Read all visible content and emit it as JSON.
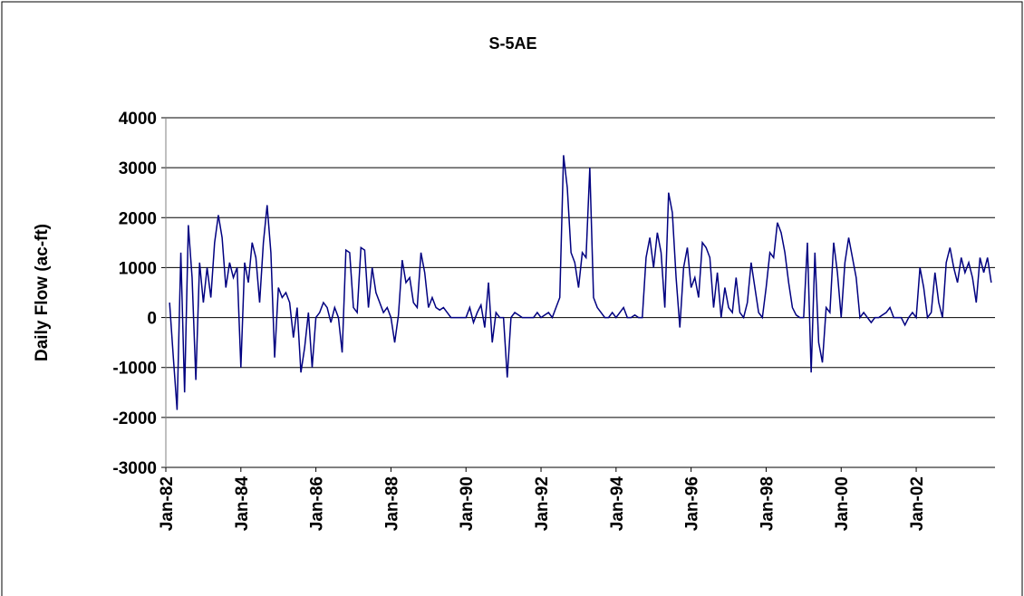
{
  "chart_data": {
    "type": "line",
    "title": "S-5AE",
    "y_label": "Daily Flow (ac-ft)",
    "color": "#000080",
    "grid": true,
    "xlim": [
      1982,
      2004.1
    ],
    "xticks": [
      {
        "value": 1982,
        "label": "Jan-82"
      },
      {
        "value": 1984,
        "label": "Jan-84"
      },
      {
        "value": 1986,
        "label": "Jan-86"
      },
      {
        "value": 1988,
        "label": "Jan-88"
      },
      {
        "value": 1990,
        "label": "Jan-90"
      },
      {
        "value": 1992,
        "label": "Jan-92"
      },
      {
        "value": 1994,
        "label": "Jan-94"
      },
      {
        "value": 1996,
        "label": "Jan-96"
      },
      {
        "value": 1998,
        "label": "Jan-98"
      },
      {
        "value": 2000,
        "label": "Jan-00"
      },
      {
        "value": 2002,
        "label": "Jan-02"
      }
    ],
    "ylim": [
      -3000,
      4000
    ],
    "yticks": [
      -3000,
      -2000,
      -1000,
      0,
      1000,
      2000,
      3000,
      4000
    ],
    "x": [
      1982.1,
      1982.2,
      1982.3,
      1982.4,
      1982.5,
      1982.6,
      1982.7,
      1982.8,
      1982.9,
      1983.0,
      1983.1,
      1983.2,
      1983.3,
      1983.4,
      1983.5,
      1983.6,
      1983.7,
      1983.8,
      1983.9,
      1984.0,
      1984.1,
      1984.2,
      1984.3,
      1984.4,
      1984.5,
      1984.6,
      1984.7,
      1984.8,
      1984.9,
      1985.0,
      1985.1,
      1985.2,
      1985.3,
      1985.4,
      1985.5,
      1985.6,
      1985.7,
      1985.8,
      1985.9,
      1986.0,
      1986.1,
      1986.2,
      1986.3,
      1986.4,
      1986.5,
      1986.6,
      1986.7,
      1986.8,
      1986.9,
      1987.0,
      1987.1,
      1987.2,
      1987.3,
      1987.4,
      1987.5,
      1987.6,
      1987.7,
      1987.8,
      1987.9,
      1988.0,
      1988.1,
      1988.2,
      1988.3,
      1988.4,
      1988.5,
      1988.6,
      1988.7,
      1988.8,
      1988.9,
      1989.0,
      1989.1,
      1989.2,
      1989.3,
      1989.4,
      1989.5,
      1989.6,
      1989.7,
      1989.8,
      1989.9,
      1990.0,
      1990.1,
      1990.2,
      1990.3,
      1990.4,
      1990.5,
      1990.6,
      1990.7,
      1990.8,
      1990.9,
      1991.0,
      1991.1,
      1991.2,
      1991.3,
      1991.4,
      1991.5,
      1991.6,
      1991.7,
      1991.8,
      1991.9,
      1992.0,
      1992.1,
      1992.2,
      1992.3,
      1992.4,
      1992.5,
      1992.6,
      1992.7,
      1992.8,
      1992.9,
      1993.0,
      1993.1,
      1993.2,
      1993.3,
      1993.4,
      1993.5,
      1993.6,
      1993.7,
      1993.8,
      1993.9,
      1994.0,
      1994.1,
      1994.2,
      1994.3,
      1994.4,
      1994.5,
      1994.6,
      1994.7,
      1994.8,
      1994.9,
      1995.0,
      1995.1,
      1995.2,
      1995.3,
      1995.4,
      1995.5,
      1995.6,
      1995.7,
      1995.8,
      1995.9,
      1996.0,
      1996.1,
      1996.2,
      1996.3,
      1996.4,
      1996.5,
      1996.6,
      1996.7,
      1996.8,
      1996.9,
      1997.0,
      1997.1,
      1997.2,
      1997.3,
      1997.4,
      1997.5,
      1997.6,
      1997.7,
      1997.8,
      1997.9,
      1998.0,
      1998.1,
      1998.2,
      1998.3,
      1998.4,
      1998.5,
      1998.6,
      1998.7,
      1998.8,
      1998.9,
      1999.0,
      1999.1,
      1999.2,
      1999.3,
      1999.4,
      1999.5,
      1999.6,
      1999.7,
      1999.8,
      1999.9,
      2000.0,
      2000.1,
      2000.2,
      2000.3,
      2000.4,
      2000.5,
      2000.6,
      2000.7,
      2000.8,
      2000.9,
      2001.0,
      2001.1,
      2001.2,
      2001.3,
      2001.4,
      2001.5,
      2001.6,
      2001.7,
      2001.8,
      2001.9,
      2002.0,
      2002.1,
      2002.2,
      2002.3,
      2002.4,
      2002.5,
      2002.6,
      2002.7,
      2002.8,
      2002.9,
      2003.0,
      2003.1,
      2003.2,
      2003.3,
      2003.4,
      2003.5,
      2003.6,
      2003.7,
      2003.8,
      2003.9,
      2004.0
    ],
    "values": [
      300,
      -800,
      -1850,
      1300,
      -1500,
      1850,
      800,
      -1250,
      1100,
      300,
      1000,
      400,
      1500,
      2050,
      1600,
      600,
      1100,
      800,
      1000,
      -1000,
      1100,
      700,
      1500,
      1200,
      300,
      1500,
      2250,
      1300,
      -800,
      600,
      400,
      500,
      300,
      -400,
      200,
      -1100,
      -600,
      100,
      -1000,
      0,
      100,
      300,
      200,
      -100,
      200,
      0,
      -700,
      1350,
      1300,
      200,
      100,
      1400,
      1350,
      200,
      1000,
      500,
      300,
      100,
      200,
      0,
      -500,
      50,
      1150,
      700,
      800,
      300,
      200,
      1300,
      900,
      200,
      400,
      200,
      150,
      200,
      100,
      0,
      0,
      0,
      0,
      0,
      200,
      -100,
      100,
      250,
      -200,
      700,
      -500,
      100,
      0,
      0,
      -1200,
      0,
      100,
      50,
      0,
      0,
      0,
      0,
      100,
      0,
      50,
      100,
      0,
      200,
      400,
      3250,
      2600,
      1300,
      1100,
      600,
      1300,
      1200,
      3000,
      400,
      200,
      100,
      0,
      0,
      100,
      0,
      100,
      200,
      0,
      0,
      50,
      0,
      0,
      1200,
      1600,
      1000,
      1700,
      1300,
      200,
      2500,
      2100,
      800,
      -200,
      1000,
      1400,
      600,
      800,
      400,
      1500,
      1400,
      1200,
      200,
      900,
      0,
      600,
      200,
      100,
      800,
      100,
      0,
      300,
      1100,
      600,
      100,
      0,
      600,
      1300,
      1200,
      1900,
      1700,
      1300,
      700,
      200,
      50,
      0,
      0,
      1500,
      -1100,
      1300,
      -500,
      -900,
      200,
      100,
      1500,
      900,
      0,
      1100,
      1600,
      1200,
      800,
      0,
      100,
      0,
      -100,
      0,
      0,
      50,
      100,
      200,
      0,
      0,
      0,
      -150,
      0,
      100,
      0,
      1000,
      600,
      0,
      100,
      900,
      300,
      0,
      1100,
      1400,
      1000,
      700,
      1200,
      900,
      1100,
      800,
      300,
      1200,
      900,
      1200,
      700
    ]
  }
}
